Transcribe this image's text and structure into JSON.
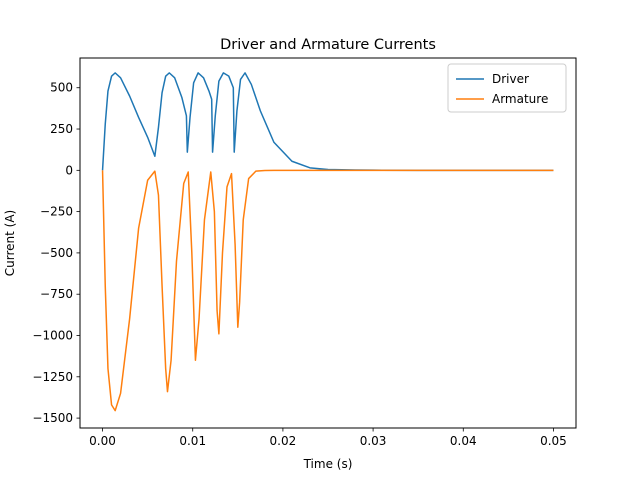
{
  "chart_data": {
    "type": "line",
    "title": "Driver and Armature Currents",
    "xlabel": "Time (s)",
    "ylabel": "Current (A)",
    "xlim": [
      -0.0025,
      0.0525
    ],
    "ylim": [
      -1560,
      680
    ],
    "xticks": [
      0.0,
      0.01,
      0.02,
      0.03,
      0.04,
      0.05
    ],
    "xtick_labels": [
      "0.00",
      "0.01",
      "0.02",
      "0.03",
      "0.04",
      "0.05"
    ],
    "yticks": [
      500,
      250,
      0,
      -250,
      -500,
      -750,
      -1000,
      -1250,
      -1500
    ],
    "ytick_labels": [
      "500",
      "250",
      "0",
      "−250",
      "−500",
      "−750",
      "−1000",
      "−1250",
      "−1500"
    ],
    "grid": false,
    "legend_position": "top-right",
    "series": [
      {
        "name": "Driver",
        "color": "#1f77b4",
        "x": [
          0.0,
          0.0003,
          0.0006,
          0.001,
          0.0014,
          0.002,
          0.003,
          0.004,
          0.005,
          0.0058,
          0.0062,
          0.0066,
          0.007,
          0.0074,
          0.008,
          0.0088,
          0.0093,
          0.0094,
          0.0097,
          0.0101,
          0.0106,
          0.0112,
          0.0118,
          0.0121,
          0.0122,
          0.0125,
          0.0129,
          0.0134,
          0.014,
          0.0145,
          0.0146,
          0.0149,
          0.0153,
          0.0158,
          0.0165,
          0.0175,
          0.019,
          0.021,
          0.023,
          0.025,
          0.028,
          0.03,
          0.035,
          0.04,
          0.045,
          0.05
        ],
        "y": [
          0,
          280,
          480,
          570,
          590,
          560,
          450,
          320,
          200,
          85,
          260,
          470,
          570,
          590,
          560,
          440,
          330,
          110,
          320,
          530,
          590,
          560,
          480,
          430,
          110,
          330,
          540,
          590,
          570,
          500,
          110,
          360,
          550,
          590,
          520,
          360,
          170,
          55,
          15,
          5,
          2,
          1,
          0,
          0,
          0,
          0
        ]
      },
      {
        "name": "Armature",
        "color": "#ff7f0e",
        "x": [
          0.0,
          0.0003,
          0.0006,
          0.001,
          0.0014,
          0.002,
          0.003,
          0.004,
          0.005,
          0.0058,
          0.0062,
          0.0066,
          0.007,
          0.0072,
          0.0076,
          0.0082,
          0.009,
          0.0095,
          0.0099,
          0.0103,
          0.0107,
          0.0113,
          0.012,
          0.0124,
          0.0127,
          0.0129,
          0.0133,
          0.0138,
          0.0143,
          0.0147,
          0.015,
          0.0152,
          0.0156,
          0.0162,
          0.017,
          0.018,
          0.019,
          0.02,
          0.025,
          0.03,
          0.035,
          0.04,
          0.045,
          0.05
        ],
        "y": [
          0,
          -700,
          -1200,
          -1420,
          -1455,
          -1350,
          -900,
          -350,
          -60,
          -5,
          -150,
          -700,
          -1200,
          -1340,
          -1150,
          -550,
          -80,
          -10,
          -500,
          -1150,
          -900,
          -300,
          -10,
          -250,
          -850,
          -990,
          -500,
          -100,
          -20,
          -450,
          -950,
          -800,
          -300,
          -50,
          -5,
          -1,
          0,
          0,
          0,
          0,
          0,
          0,
          0,
          0
        ]
      }
    ]
  }
}
